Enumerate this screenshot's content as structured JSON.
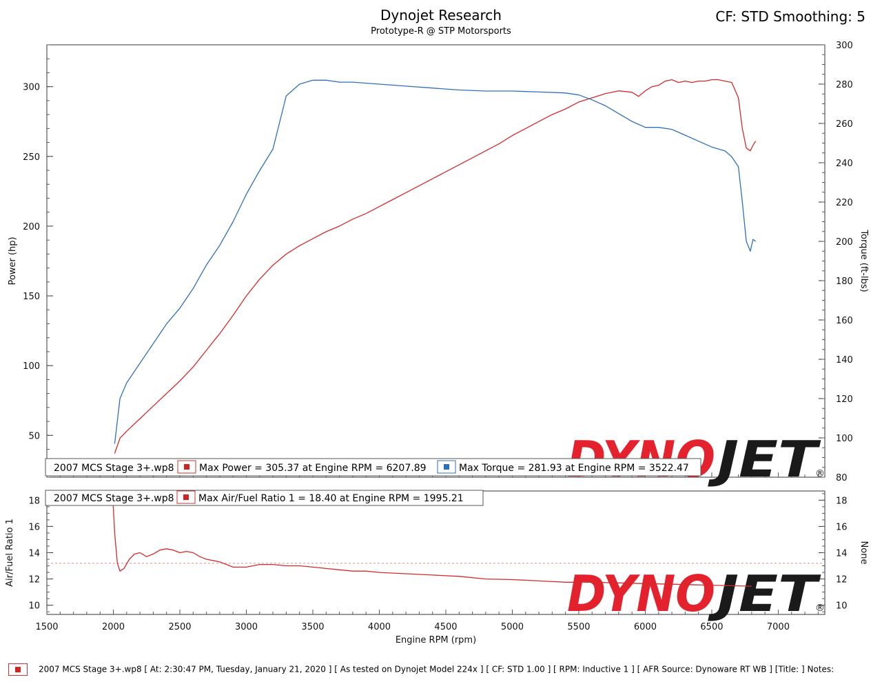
{
  "header": {
    "title": "Dynojet Research",
    "subtitle": "Prototype-R @ STP Motorsports",
    "cf_info": "CF: STD Smoothing: 5"
  },
  "legend": {
    "top_file": "2007 MCS Stage 3+.wp8",
    "max_power": "Max Power = 305.37 at Engine RPM = 6207.89",
    "max_torque": "Max Torque = 281.93 at Engine RPM = 3522.47",
    "bottom_file": "2007 MCS Stage 3+.wp8",
    "max_afr": "Max Air/Fuel Ratio 1 = 18.40 at Engine RPM = 1995.21"
  },
  "logo": {
    "part1": "DYNO",
    "part2": "JET",
    "reg": "®"
  },
  "footer": {
    "text": "2007 MCS Stage 3+.wp8 [ At: 2:30:47 PM, Tuesday, January 21, 2020 ] [ As tested on Dynojet Model 224x ] [ CF: STD 1.00 ] [ RPM: Inductive 1 ] [ AFR Source: Dynoware RT WB ] [Title: ]  Notes:"
  },
  "colors": {
    "power": "#d42a2a",
    "torque": "#2f6fb8",
    "afr": "#d42a2a",
    "grid": "#cccccc",
    "reference": "#e88a8a"
  },
  "chart_data": [
    {
      "type": "line",
      "title": "Dynojet Research",
      "subtitle": "Prototype-R @ STP Motorsports",
      "xlabel": "Engine RPM (rpm)",
      "ylabel": "Power (hp)",
      "y2label": "Torque (ft-lbs)",
      "xlim": [
        1500,
        7350
      ],
      "ylim": [
        20,
        330
      ],
      "y2lim": [
        80,
        300
      ],
      "xticks": [
        1500,
        2000,
        2500,
        3000,
        3500,
        4000,
        4500,
        5000,
        5500,
        6000,
        6500,
        7000
      ],
      "yticks": [
        50,
        100,
        150,
        200,
        250,
        300
      ],
      "y2ticks": [
        80,
        100,
        120,
        140,
        160,
        180,
        200,
        220,
        240,
        260,
        280,
        300
      ],
      "grid": true,
      "legend_position": "bottom",
      "series": [
        {
          "name": "Max Power",
          "axis": "left",
          "x": [
            2010,
            2050,
            2100,
            2200,
            2300,
            2400,
            2500,
            2600,
            2700,
            2800,
            2900,
            3000,
            3100,
            3200,
            3300,
            3400,
            3500,
            3600,
            3700,
            3800,
            3900,
            4000,
            4100,
            4200,
            4300,
            4400,
            4500,
            4600,
            4700,
            4800,
            4900,
            5000,
            5100,
            5200,
            5300,
            5400,
            5500,
            5600,
            5700,
            5800,
            5900,
            5950,
            6000,
            6050,
            6100,
            6150,
            6200,
            6250,
            6300,
            6350,
            6400,
            6450,
            6500,
            6550,
            6600,
            6650,
            6700,
            6730,
            6760,
            6790,
            6810,
            6830
          ],
          "values": [
            37,
            48,
            53,
            62,
            71,
            80,
            89,
            99,
            111,
            123,
            136,
            150,
            162,
            172,
            180,
            186,
            191,
            196,
            200,
            205,
            209,
            214,
            219,
            224,
            229,
            234,
            239,
            244,
            249,
            254,
            259,
            265,
            270,
            275,
            280,
            284,
            289,
            292,
            295,
            297,
            296,
            293,
            297,
            300,
            301,
            304,
            305,
            303,
            304,
            303,
            304,
            304,
            305,
            305,
            304,
            303,
            292,
            270,
            256,
            254,
            258,
            261
          ]
        },
        {
          "name": "Max Torque",
          "axis": "right",
          "x": [
            2010,
            2050,
            2100,
            2200,
            2300,
            2400,
            2500,
            2600,
            2700,
            2800,
            2900,
            3000,
            3100,
            3200,
            3300,
            3400,
            3500,
            3600,
            3700,
            3800,
            3900,
            4000,
            4200,
            4400,
            4600,
            4800,
            5000,
            5200,
            5400,
            5500,
            5600,
            5700,
            5800,
            5900,
            6000,
            6100,
            6200,
            6300,
            6400,
            6500,
            6600,
            6650,
            6700,
            6730,
            6760,
            6790,
            6810,
            6830
          ],
          "values": [
            97,
            120,
            128,
            138,
            148,
            158,
            166,
            176,
            188,
            198,
            210,
            224,
            236,
            247,
            274,
            280,
            282,
            282,
            281,
            281,
            280.5,
            280,
            279,
            278,
            277,
            276.5,
            276.5,
            276,
            275.5,
            274.5,
            272,
            269,
            265,
            261,
            258,
            258,
            257,
            254,
            251,
            248,
            246,
            243,
            238,
            220,
            200,
            195,
            201,
            200
          ]
        }
      ]
    },
    {
      "type": "line",
      "xlabel": "Engine RPM (rpm)",
      "ylabel": "Air/Fuel Ratio 1",
      "y2label": "None",
      "xlim": [
        1500,
        7350
      ],
      "ylim": [
        9.3,
        18.7
      ],
      "y2lim": [
        9.3,
        18.7
      ],
      "xticks": [
        1500,
        2000,
        2500,
        3000,
        3500,
        4000,
        4500,
        5000,
        5500,
        6000,
        6500,
        7000
      ],
      "yticks": [
        10,
        12,
        14,
        16,
        18
      ],
      "y2ticks": [
        10,
        12,
        14,
        16,
        18
      ],
      "reference_line": 13.2,
      "grid": true,
      "legend_position": "top-left",
      "series": [
        {
          "name": "Max Air/Fuel Ratio 1",
          "axis": "left",
          "x": [
            1995,
            2010,
            2030,
            2050,
            2080,
            2120,
            2160,
            2200,
            2250,
            2300,
            2350,
            2400,
            2450,
            2500,
            2550,
            2600,
            2650,
            2700,
            2800,
            2900,
            3000,
            3100,
            3200,
            3300,
            3400,
            3500,
            3600,
            3700,
            3800,
            3900,
            4000,
            4200,
            4400,
            4600,
            4800,
            5000,
            5200,
            5400,
            5600,
            5800,
            6000,
            6200,
            6400,
            6600,
            6800
          ],
          "values": [
            18.4,
            15.5,
            13.2,
            12.6,
            12.8,
            13.5,
            13.9,
            14.0,
            13.7,
            13.9,
            14.2,
            14.3,
            14.2,
            14.0,
            14.1,
            14.0,
            13.7,
            13.5,
            13.3,
            12.9,
            12.9,
            13.1,
            13.1,
            13.0,
            13.0,
            12.9,
            12.8,
            12.7,
            12.6,
            12.6,
            12.5,
            12.4,
            12.3,
            12.2,
            12.0,
            11.95,
            11.85,
            11.75,
            11.75,
            11.7,
            11.65,
            11.6,
            11.55,
            11.5,
            11.45
          ]
        }
      ]
    }
  ]
}
